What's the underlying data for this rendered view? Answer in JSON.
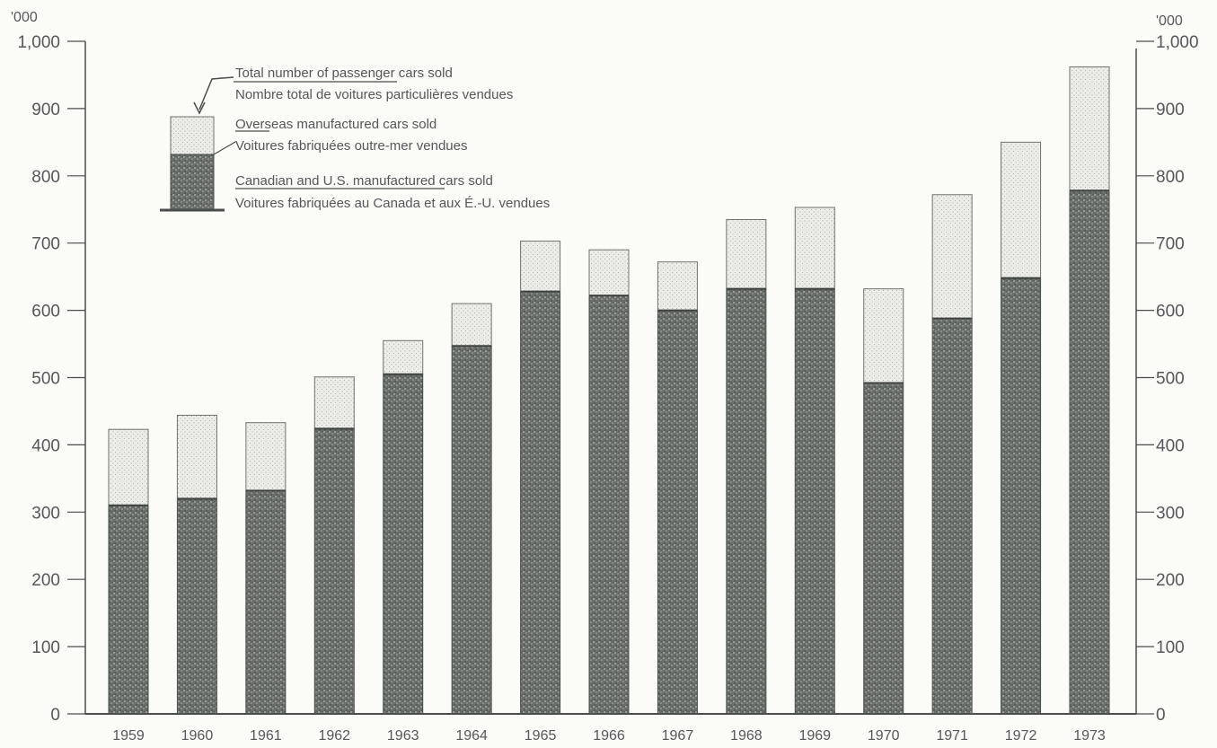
{
  "chart_data": {
    "type": "bar",
    "stacked": true,
    "categories": [
      "1959",
      "1960",
      "1961",
      "1962",
      "1963",
      "1964",
      "1965",
      "1966",
      "1967",
      "1968",
      "1969",
      "1970",
      "1971",
      "1972",
      "1973"
    ],
    "series": [
      {
        "name": "Canadian and U.S. manufactured cars sold",
        "name_fr": "Voitures fabriquées au Canada et aux É.-U. vendues",
        "values": [
          310,
          320,
          332,
          424,
          505,
          547,
          628,
          622,
          600,
          632,
          632,
          492,
          588,
          648,
          778
        ]
      },
      {
        "name": "Overseas manufactured cars sold",
        "name_fr": "Voitures fabriquées outre-mer vendues",
        "values": [
          113,
          124,
          101,
          77,
          50,
          63,
          75,
          68,
          72,
          103,
          121,
          140,
          184,
          202,
          184
        ]
      }
    ],
    "totals_label": {
      "name": "Total number of passenger cars sold",
      "name_fr": "Nombre total de voitures particulières vendues"
    },
    "unit_label": "'000",
    "ylim": [
      0,
      1000
    ],
    "yticks": [
      0,
      100,
      200,
      300,
      400,
      500,
      600,
      700,
      800,
      900,
      1000
    ],
    "ytick_labels": [
      "0",
      "100",
      "200",
      "300",
      "400",
      "500",
      "600",
      "700",
      "800",
      "900",
      "1,000"
    ],
    "grid": false,
    "legend_position": "top-left",
    "colors": {
      "domestic": "#5c605d",
      "overseas": "#e8e9e4",
      "axis": "#4a4d4c",
      "text": "#55575a"
    }
  }
}
